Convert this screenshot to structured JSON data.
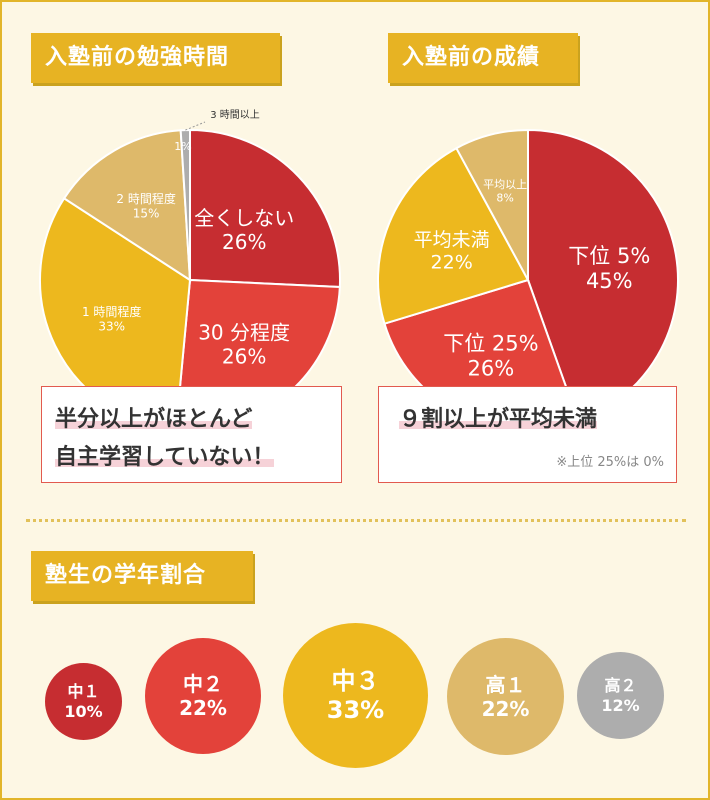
{
  "colors": {
    "red_dark": "#c62d31",
    "red": "#e3423a",
    "yellow": "#edb81e",
    "tan": "#deb96a",
    "gray": "#adadad",
    "heading_bg": "#e7b323",
    "background": "#fdf7e4"
  },
  "chart_data": [
    {
      "type": "pie",
      "title": "入塾前の勉強時間",
      "categories": [
        "全くしない",
        "30 分程度",
        "1 時間程度",
        "2 時間程度",
        "3 時間以上"
      ],
      "values": [
        26,
        26,
        33,
        15,
        1
      ],
      "value_labels": [
        "26%",
        "26%",
        "33%",
        "15%",
        "1%"
      ],
      "colors": [
        "#c62d31",
        "#e3423a",
        "#edb81e",
        "#deb96a",
        "#adadad"
      ],
      "callout": {
        "line1": "半分以上がほとんど",
        "line2": "自主学習していない！"
      }
    },
    {
      "type": "pie",
      "title": "入塾前の成績",
      "categories": [
        "下位 5%",
        "下位 25%",
        "平均未満",
        "平均以上"
      ],
      "values": [
        45,
        26,
        22,
        8
      ],
      "value_labels": [
        "45%",
        "26%",
        "22%",
        "8%"
      ],
      "colors": [
        "#c62d31",
        "#e3423a",
        "#edb81e",
        "#deb96a"
      ],
      "callout": {
        "line1": "９割以上が平均未満",
        "note": "※上位 25%は 0%"
      }
    },
    {
      "type": "bubble",
      "title": "塾生の学年割合",
      "categories": [
        "中１",
        "中２",
        "中３",
        "高１",
        "高２"
      ],
      "values": [
        10,
        22,
        33,
        22,
        12
      ],
      "value_labels": [
        "10%",
        "22%",
        "33%",
        "22%",
        "12%"
      ],
      "colors": [
        "#c62d31",
        "#e3423a",
        "#edb81e",
        "#deb96a",
        "#adadad"
      ]
    }
  ]
}
